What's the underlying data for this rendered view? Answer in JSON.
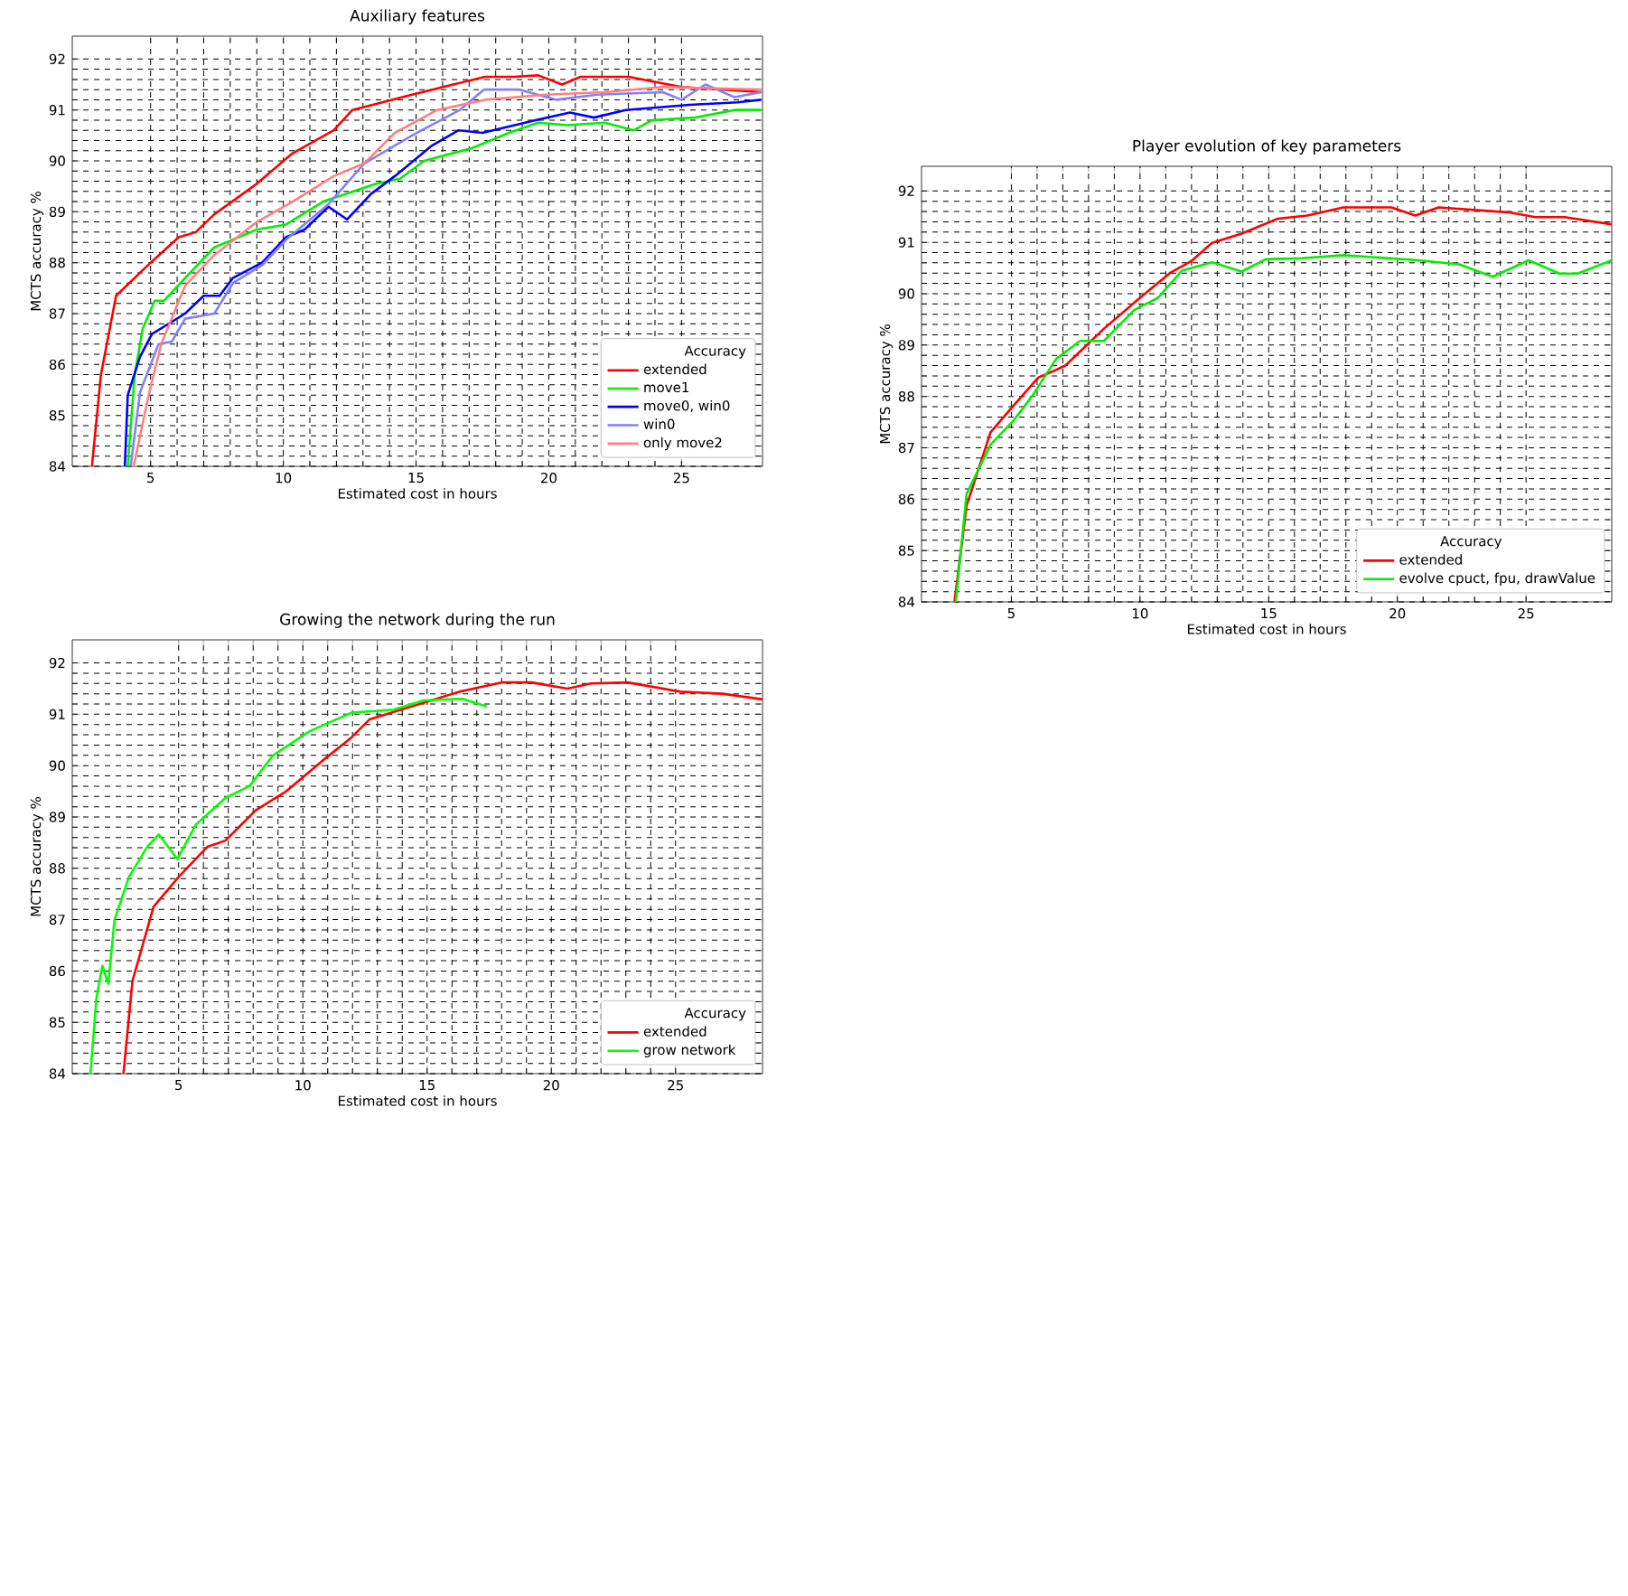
{
  "chart_data": [
    {
      "type": "line",
      "title": "Auxiliary features",
      "xlabel": "Estimated cost in hours",
      "ylabel": "MCTS accuracy %",
      "legend_title": "Accuracy",
      "xlim": [
        2.05,
        28.05
      ],
      "ylim": [
        84,
        92.45
      ],
      "xticks": [
        5,
        10,
        15,
        20,
        25
      ],
      "yticks": [
        84,
        85,
        86,
        87,
        88,
        89,
        90,
        91,
        92
      ],
      "grid": true,
      "legend": "bottom right",
      "line_style": "solid",
      "marker": "none",
      "series": [
        {
          "name": "extended",
          "color": "#ff0000",
          "x": [
            2.79,
            3.13,
            3.7,
            5,
            6.06,
            6.7,
            7.4,
            9.0,
            10.35,
            11.9,
            12.6,
            14.85,
            16.4,
            17.6,
            18.7,
            19.6,
            20.5,
            21.2,
            23,
            25,
            26.6,
            28.0
          ],
          "values": [
            84,
            85.8,
            87.35,
            88.0,
            88.5,
            88.6,
            88.95,
            89.55,
            90.15,
            90.6,
            91.0,
            91.3,
            91.5,
            91.65,
            91.65,
            91.68,
            91.5,
            91.65,
            91.65,
            91.45,
            91.4,
            91.35
          ]
        },
        {
          "name": "move1",
          "color": "#00ee00",
          "x": [
            4.14,
            4.4,
            4.7,
            5.15,
            5.5,
            6.3,
            7.4,
            9.0,
            10.1,
            11.5,
            13.5,
            14.4,
            15.3,
            17.1,
            18.5,
            19.6,
            20.7,
            22.1,
            23.2,
            23.9,
            25.5,
            27.0,
            28.0
          ],
          "values": [
            84,
            85.8,
            86.7,
            87.25,
            87.25,
            87.7,
            88.3,
            88.65,
            88.75,
            89.2,
            89.55,
            89.65,
            90.0,
            90.25,
            90.55,
            90.75,
            90.7,
            90.75,
            90.6,
            90.8,
            90.85,
            91.0,
            91.0
          ]
        },
        {
          "name": "move0, win0",
          "color": "#0000ff",
          "x": [
            4.03,
            4.14,
            4.6,
            5.05,
            6.3,
            7.0,
            7.6,
            8.1,
            9.2,
            10.1,
            10.8,
            11.7,
            12.4,
            13.3,
            14.2,
            15.6,
            16.6,
            17.5,
            19.5,
            20.8,
            21.7,
            22.9,
            25.3,
            27.1,
            28.0
          ],
          "values": [
            84,
            85.4,
            86.15,
            86.6,
            87.0,
            87.35,
            87.35,
            87.7,
            88.0,
            88.5,
            88.65,
            89.1,
            88.85,
            89.35,
            89.7,
            90.3,
            90.6,
            90.55,
            90.8,
            90.95,
            90.85,
            91.0,
            91.1,
            91.15,
            91.2
          ]
        },
        {
          "name": "win0",
          "color": "#8080ff",
          "x": [
            4.25,
            4.6,
            5.3,
            5.8,
            6.3,
            7.4,
            8.1,
            9.2,
            10.1,
            11.7,
            13.05,
            14.85,
            16.65,
            17.55,
            18.9,
            20.3,
            21.8,
            24.3,
            25,
            25.9,
            27,
            28.0
          ],
          "values": [
            84,
            85.45,
            86.4,
            86.45,
            86.9,
            87.0,
            87.6,
            87.95,
            88.45,
            89.15,
            89.95,
            90.5,
            91.0,
            91.4,
            91.4,
            91.2,
            91.3,
            91.35,
            91.2,
            91.5,
            91.25,
            91.35
          ]
        },
        {
          "name": "only move2",
          "color": "#ff8080",
          "x": [
            4.36,
            4.95,
            5.4,
            6.3,
            7.4,
            9.0,
            10.35,
            11.9,
            13.05,
            14.2,
            15.8,
            17.6,
            19.9,
            22.1,
            24.3,
            28.0
          ],
          "values": [
            84,
            85.45,
            86.4,
            87.55,
            88.15,
            88.8,
            89.2,
            89.7,
            89.95,
            90.55,
            91.0,
            91.2,
            91.3,
            91.35,
            91.45,
            91.4
          ]
        }
      ]
    },
    {
      "type": "line",
      "title": "Player evolution of key parameters",
      "xlabel": "Estimated cost in hours",
      "ylabel": "MCTS accuracy %",
      "legend_title": "Accuracy",
      "xlim": [
        1.51,
        28.33
      ],
      "ylim": [
        84,
        92.48
      ],
      "xticks": [
        5,
        10,
        15,
        20,
        25
      ],
      "yticks": [
        84,
        85,
        86,
        87,
        88,
        89,
        90,
        91,
        92
      ],
      "grid": true,
      "legend": "bottom right",
      "line_style": "solid",
      "marker": "none",
      "series": [
        {
          "name": "extended",
          "color": "#ff0000",
          "x": [
            2.79,
            3.26,
            4.19,
            5,
            6.05,
            6.63,
            7.1,
            8.6,
            10,
            11.16,
            11.98,
            12.8,
            13.95,
            15.35,
            16.5,
            17.9,
            19.77,
            20.7,
            21.6,
            24.4,
            25.35,
            26.5,
            28.33
          ],
          "values": [
            84,
            85.87,
            87.3,
            87.77,
            88.37,
            88.49,
            88.6,
            89.32,
            89.92,
            90.4,
            90.63,
            90.99,
            91.17,
            91.46,
            91.52,
            91.68,
            91.68,
            91.52,
            91.68,
            91.58,
            91.49,
            91.49,
            91.35
          ]
        },
        {
          "name": "evolve cpuct, fpu, drawValue",
          "color": "#00ee00",
          "x": [
            2.84,
            3.26,
            4.19,
            5.1,
            5.8,
            6.74,
            7.67,
            8.6,
            9.77,
            10.7,
            11.63,
            12.8,
            13.95,
            14.88,
            16.28,
            17.9,
            20.8,
            22.4,
            23.7,
            25.1,
            26.3,
            27.0,
            28.33
          ],
          "values": [
            84,
            86.1,
            87.06,
            87.54,
            88.0,
            88.73,
            89.08,
            89.08,
            89.68,
            89.92,
            90.45,
            90.61,
            90.43,
            90.67,
            90.69,
            90.75,
            90.65,
            90.57,
            90.33,
            90.65,
            90.39,
            90.39,
            90.65
          ]
        }
      ]
    },
    {
      "type": "line",
      "title": "Growing the network during the run",
      "xlabel": "Estimated cost in hours",
      "ylabel": "MCTS accuracy %",
      "legend_title": "Accuracy",
      "xlim": [
        0.72,
        28.5
      ],
      "ylim": [
        84,
        92.45
      ],
      "xticks": [
        5,
        10,
        15,
        20,
        25
      ],
      "yticks": [
        84,
        85,
        86,
        87,
        88,
        89,
        90,
        91,
        92
      ],
      "grid": true,
      "legend": "bottom right",
      "line_style": "solid",
      "marker": "none",
      "series": [
        {
          "name": "extended",
          "color": "#ff0000",
          "x": [
            2.78,
            3.14,
            3.99,
            5,
            6.16,
            6.88,
            8.1,
            9.3,
            10.75,
            11.96,
            12.68,
            14.37,
            16.3,
            17.99,
            19.2,
            20.65,
            21.6,
            23.07,
            25.2,
            26.9,
            28.5
          ],
          "values": [
            84,
            85.8,
            87.25,
            87.83,
            88.42,
            88.54,
            89.13,
            89.49,
            90.08,
            90.55,
            90.9,
            91.15,
            91.44,
            91.62,
            91.62,
            91.5,
            91.6,
            91.62,
            91.44,
            91.4,
            91.29
          ]
        },
        {
          "name": "grow network",
          "color": "#00ff00",
          "x": [
            1.45,
            1.69,
            1.93,
            2.17,
            2.42,
            3.0,
            3.74,
            4.2,
            4.95,
            5.68,
            6.88,
            7.85,
            8.8,
            10.27,
            11.96,
            13.65,
            14.86,
            16.43,
            17.4
          ],
          "values": [
            84,
            85.46,
            86.1,
            85.75,
            87.0,
            87.83,
            88.42,
            88.66,
            88.18,
            88.84,
            89.37,
            89.6,
            90.2,
            90.67,
            91.03,
            91.09,
            91.27,
            91.3,
            91.15
          ]
        }
      ]
    }
  ]
}
